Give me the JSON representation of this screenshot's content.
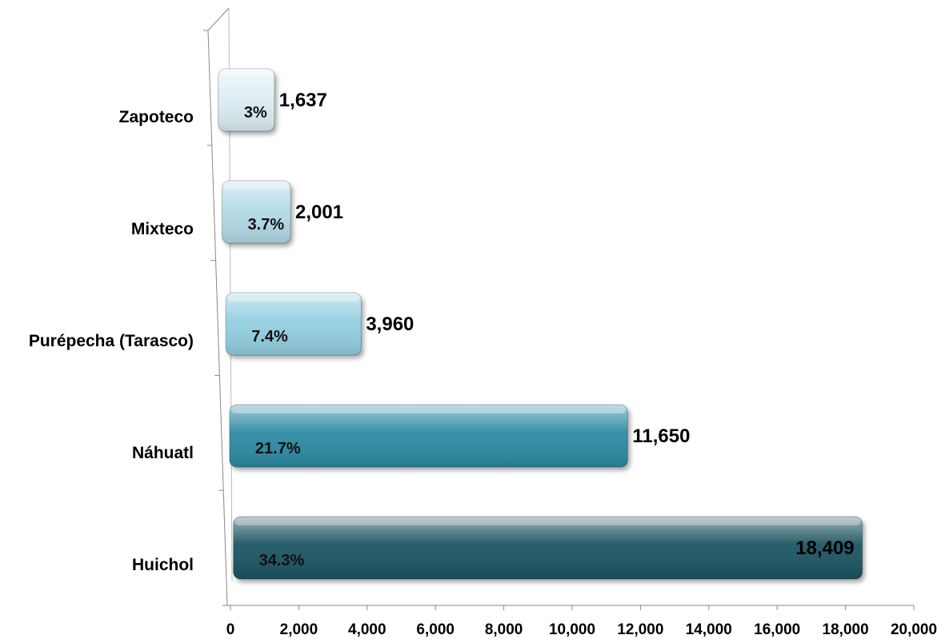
{
  "chart_data": {
    "type": "bar",
    "orientation": "horizontal",
    "categories": [
      "Zapoteco",
      "Mixteco",
      "Purépecha (Tarasco)",
      "Náhuatl",
      "Huichol"
    ],
    "values": [
      1637,
      2001,
      3960,
      11650,
      18409
    ],
    "value_labels": [
      "1,637",
      "2,001",
      "3,960",
      "11,650",
      "18,409"
    ],
    "percent_labels": [
      "3%",
      "3.7%",
      "7.4%",
      "21.7%",
      "34.3%"
    ],
    "bar_colors": [
      "#dceef4",
      "#b3dbe8",
      "#93cfe0",
      "#2e8aa3",
      "#1e5562"
    ],
    "xlim": [
      0,
      20000
    ],
    "xticks": [
      "0",
      "2,000",
      "4,000",
      "6,000",
      "8,000",
      "10,000",
      "12,000",
      "14,000",
      "16,000",
      "18,000",
      "20,000"
    ],
    "grid": false,
    "legend": "none",
    "title": "",
    "xlabel": "",
    "ylabel": ""
  }
}
